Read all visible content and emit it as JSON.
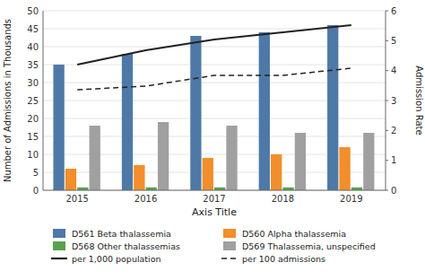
{
  "chart_data": {
    "type": "bar",
    "xlabel": "Axis Title",
    "ylabel": "Number of Admissions in Thousands",
    "y2label": "Admission Rate",
    "categories": [
      "2015",
      "2016",
      "2017",
      "2018",
      "2019"
    ],
    "series": [
      {
        "name": "D561 Beta thalassemia",
        "type": "bar",
        "color": "#4e79a7",
        "values": [
          35,
          38,
          43,
          44,
          46
        ]
      },
      {
        "name": "D560 Alpha thalassemia",
        "type": "bar",
        "color": "#f28e2b",
        "values": [
          6,
          7,
          9,
          10,
          12
        ]
      },
      {
        "name": "D568 Other thalassemias",
        "type": "bar",
        "color": "#59a14f",
        "values": [
          0.8,
          0.8,
          0.8,
          0.8,
          0.8
        ]
      },
      {
        "name": "D569 Thalassemia, unspecified",
        "type": "bar",
        "color": "#a0a0a0",
        "values": [
          18,
          19,
          18,
          16,
          16
        ]
      },
      {
        "name": "per 1,000 population",
        "type": "line",
        "color": "#222222",
        "line_style": "solid",
        "values": [
          35,
          39,
          42,
          44,
          46
        ]
      },
      {
        "name": "per 100 admissions",
        "type": "line",
        "color": "#222222",
        "line_style": "dashed",
        "values": [
          28,
          29,
          32,
          32,
          34
        ]
      }
    ],
    "ylim": [
      0,
      50
    ],
    "yticks": [
      0,
      5,
      10,
      15,
      20,
      25,
      30,
      35,
      40,
      45,
      50
    ],
    "y2lim": [
      0,
      6
    ],
    "y2ticks": [
      0,
      1,
      2,
      3,
      4,
      5,
      6
    ],
    "grid": true,
    "legend": "bottom"
  }
}
